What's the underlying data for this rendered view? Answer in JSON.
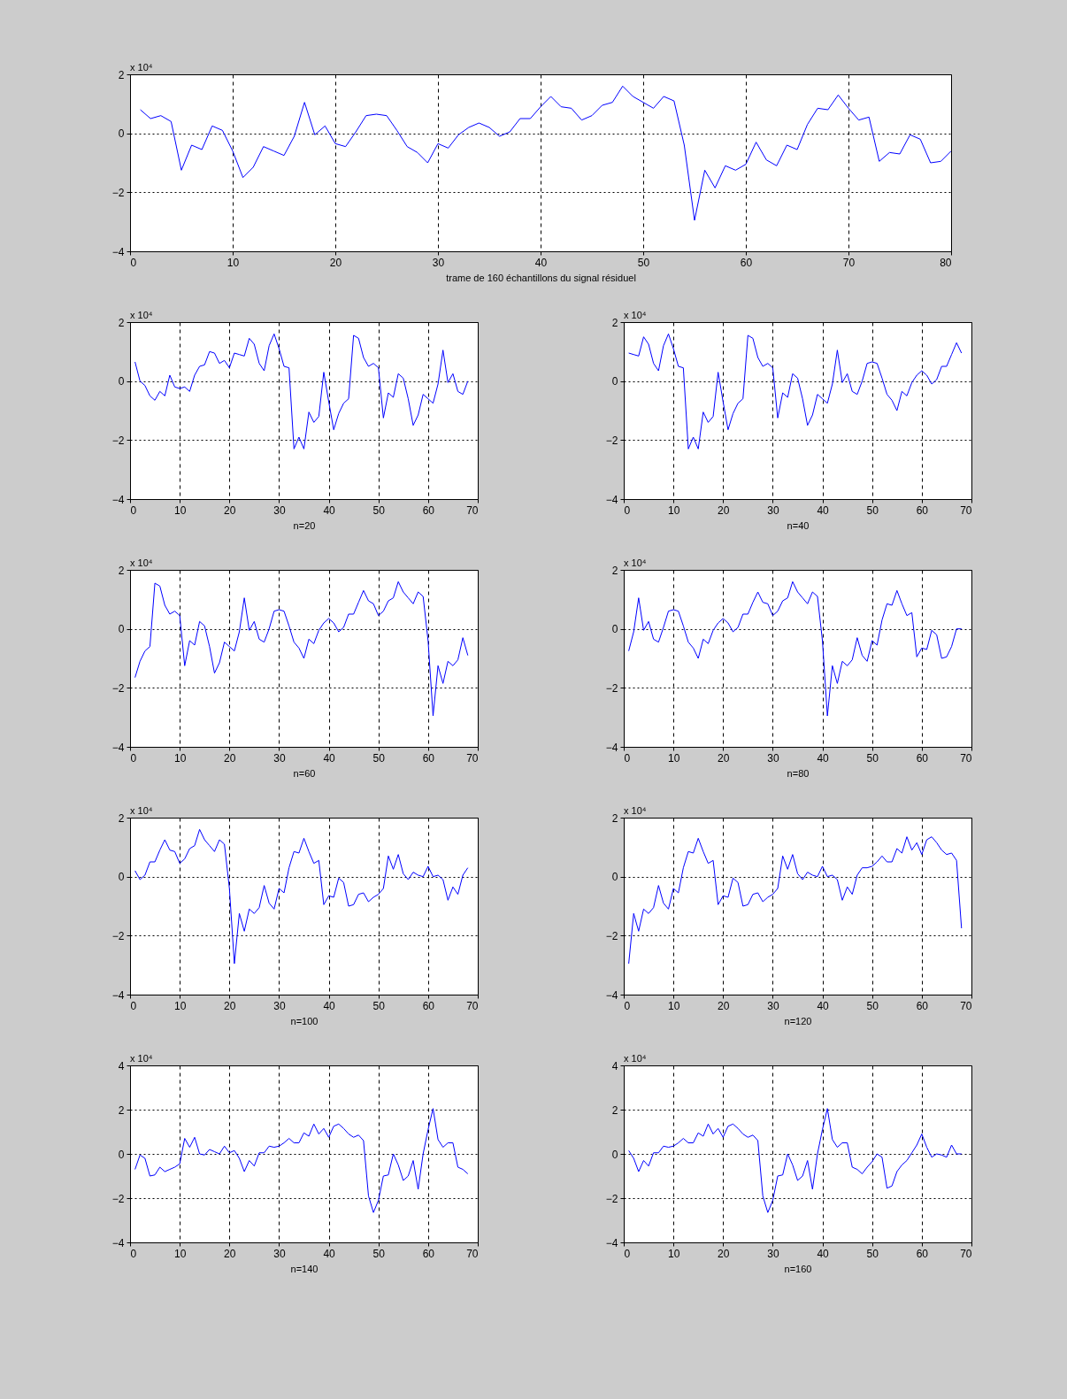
{
  "chart_data": [
    {
      "type": "line",
      "xlabel": "trame de 160 échantillons du signal résiduel",
      "annotations": [
        "x 10⁴"
      ],
      "xlim": [
        0,
        80
      ],
      "xticks": [
        0,
        10,
        20,
        30,
        40,
        50,
        60,
        70,
        80
      ],
      "ylim": [
        -4,
        2
      ],
      "yticks": [
        -4,
        -2,
        0,
        2
      ],
      "grid": true,
      "x": [
        1,
        2,
        3,
        4,
        5,
        6,
        7,
        8,
        9,
        10,
        11,
        12,
        13,
        14,
        15,
        16,
        17,
        18,
        19,
        20,
        21,
        22,
        23,
        24,
        25,
        26,
        27,
        28,
        29,
        30,
        31,
        32,
        33,
        34,
        35,
        36,
        37,
        38,
        39,
        40,
        41,
        42,
        43,
        44,
        45,
        46,
        47,
        48,
        49,
        50,
        51,
        52,
        53,
        54,
        55,
        56,
        57,
        58,
        59,
        60,
        61,
        62,
        63,
        64,
        65,
        66,
        67,
        68,
        69,
        70,
        71,
        72,
        73,
        74,
        75,
        76,
        77,
        78,
        79,
        80
      ],
      "series": [
        {
          "color": "#0000ff",
          "values": [
            0.8,
            0.5,
            0.6,
            0.4,
            -1.25,
            -0.4,
            -0.55,
            0.25,
            0.1,
            -0.6,
            -1.5,
            -1.15,
            -0.45,
            -0.6,
            -0.75,
            -0.1,
            1.05,
            -0.05,
            0.25,
            -0.35,
            -0.45,
            0.05,
            0.6,
            0.65,
            0.6,
            0.1,
            -0.45,
            -0.65,
            -1.0,
            -0.35,
            -0.5,
            -0.05,
            0.2,
            0.35,
            0.2,
            -0.1,
            0.05,
            0.5,
            0.5,
            0.9,
            1.25,
            0.9,
            0.85,
            0.45,
            0.6,
            0.95,
            1.05,
            1.6,
            1.25,
            1.05,
            0.85,
            1.25,
            1.1,
            -0.4,
            -2.95,
            -1.25,
            -1.85,
            -1.1,
            -1.25,
            -1.05,
            -0.3,
            -0.9,
            -1.1,
            -0.4,
            -0.55,
            0.3,
            0.85,
            0.8,
            1.3,
            0.85,
            0.45,
            0.55,
            -0.95,
            -0.65,
            -0.7,
            -0.05,
            -0.2,
            -1.0,
            -0.95,
            -0.6
          ]
        }
      ]
    },
    {
      "type": "line",
      "xlabel": "n=20",
      "annotations": [
        "x 10⁴"
      ],
      "xlim": [
        0,
        70
      ],
      "xticks": [
        0,
        10,
        20,
        30,
        40,
        50,
        60,
        70
      ],
      "ylim": [
        -4,
        2
      ],
      "yticks": [
        -4,
        -2,
        0,
        2
      ],
      "grid": true,
      "x": [
        1,
        2,
        3,
        4,
        5,
        6,
        7,
        8,
        9,
        10,
        11,
        12,
        13,
        14,
        15,
        16,
        17,
        18,
        19,
        20,
        21,
        22,
        23,
        24,
        25,
        26,
        27,
        28,
        29,
        30,
        31,
        32,
        33,
        34,
        35,
        36,
        37,
        38,
        39,
        40,
        41,
        42,
        43,
        44,
        45,
        46,
        47,
        48,
        49,
        50,
        51,
        52,
        53,
        54,
        55,
        56,
        57,
        58,
        59,
        60,
        61,
        62,
        63,
        64,
        65,
        66,
        67,
        68
      ],
      "series": [
        {
          "color": "#0000ff",
          "values": [
            0.65,
            0.0,
            -0.15,
            -0.5,
            -0.65,
            -0.35,
            -0.5,
            0.2,
            -0.2,
            -0.25,
            -0.2,
            -0.35,
            0.2,
            0.5,
            0.55,
            1.0,
            0.95,
            0.6,
            0.7,
            0.45,
            0.95,
            0.9,
            0.85,
            1.45,
            1.25,
            0.6,
            0.35,
            1.2,
            1.6,
            1.1,
            0.5,
            0.45,
            -2.3,
            -1.9,
            -2.3,
            -1.05,
            -1.4,
            -1.2,
            0.3,
            -0.7,
            -1.65,
            -1.1,
            -0.75,
            -0.6,
            1.55,
            1.45,
            0.8,
            0.5,
            0.6,
            0.45,
            -1.25,
            -0.4,
            -0.55,
            0.25,
            0.1,
            -0.6,
            -1.5,
            -1.15,
            -0.45,
            -0.6,
            -0.75,
            -0.1,
            1.05,
            -0.05,
            0.25,
            -0.35,
            -0.45,
            0.0
          ]
        }
      ]
    },
    {
      "type": "line",
      "xlabel": "n=40",
      "annotations": [
        "x 10⁴"
      ],
      "xlim": [
        0,
        70
      ],
      "xticks": [
        0,
        10,
        20,
        30,
        40,
        50,
        60,
        70
      ],
      "ylim": [
        -4,
        2
      ],
      "yticks": [
        -4,
        -2,
        0,
        2
      ],
      "grid": true,
      "x": [
        1,
        2,
        3,
        4,
        5,
        6,
        7,
        8,
        9,
        10,
        11,
        12,
        13,
        14,
        15,
        16,
        17,
        18,
        19,
        20,
        21,
        22,
        23,
        24,
        25,
        26,
        27,
        28,
        29,
        30,
        31,
        32,
        33,
        34,
        35,
        36,
        37,
        38,
        39,
        40,
        41,
        42,
        43,
        44,
        45,
        46,
        47,
        48,
        49,
        50,
        51,
        52,
        53,
        54,
        55,
        56,
        57,
        58,
        59,
        60,
        61,
        62,
        63,
        64,
        65,
        66,
        67,
        68
      ],
      "series": [
        {
          "color": "#0000ff",
          "values": [
            0.95,
            0.9,
            0.85,
            1.5,
            1.25,
            0.6,
            0.35,
            1.2,
            1.6,
            1.1,
            0.5,
            0.45,
            -2.3,
            -1.9,
            -2.3,
            -1.05,
            -1.4,
            -1.2,
            0.3,
            -0.7,
            -1.65,
            -1.1,
            -0.75,
            -0.6,
            1.55,
            1.45,
            0.8,
            0.5,
            0.6,
            0.45,
            -1.25,
            -0.4,
            -0.55,
            0.25,
            0.1,
            -0.6,
            -1.5,
            -1.15,
            -0.45,
            -0.6,
            -0.75,
            -0.1,
            1.05,
            -0.05,
            0.25,
            -0.35,
            -0.45,
            0.0,
            0.6,
            0.65,
            0.6,
            0.1,
            -0.45,
            -0.65,
            -1.0,
            -0.35,
            -0.5,
            -0.05,
            0.2,
            0.35,
            0.2,
            -0.1,
            0.05,
            0.5,
            0.5,
            0.9,
            1.3,
            0.95
          ]
        }
      ]
    },
    {
      "type": "line",
      "xlabel": "n=60",
      "annotations": [
        "x 10⁴"
      ],
      "xlim": [
        0,
        70
      ],
      "xticks": [
        0,
        10,
        20,
        30,
        40,
        50,
        60,
        70
      ],
      "ylim": [
        -4,
        2
      ],
      "yticks": [
        -4,
        -2,
        0,
        2
      ],
      "grid": true,
      "x": [
        1,
        2,
        3,
        4,
        5,
        6,
        7,
        8,
        9,
        10,
        11,
        12,
        13,
        14,
        15,
        16,
        17,
        18,
        19,
        20,
        21,
        22,
        23,
        24,
        25,
        26,
        27,
        28,
        29,
        30,
        31,
        32,
        33,
        34,
        35,
        36,
        37,
        38,
        39,
        40,
        41,
        42,
        43,
        44,
        45,
        46,
        47,
        48,
        49,
        50,
        51,
        52,
        53,
        54,
        55,
        56,
        57,
        58,
        59,
        60,
        61,
        62,
        63,
        64,
        65,
        66,
        67,
        68
      ],
      "series": [
        {
          "color": "#0000ff",
          "values": [
            -1.65,
            -1.1,
            -0.75,
            -0.6,
            1.55,
            1.45,
            0.8,
            0.5,
            0.6,
            0.45,
            -1.25,
            -0.4,
            -0.55,
            0.25,
            0.1,
            -0.6,
            -1.5,
            -1.15,
            -0.45,
            -0.6,
            -0.75,
            -0.1,
            1.05,
            -0.05,
            0.25,
            -0.35,
            -0.45,
            0.0,
            0.6,
            0.65,
            0.6,
            0.1,
            -0.45,
            -0.65,
            -1.0,
            -0.35,
            -0.5,
            -0.05,
            0.2,
            0.35,
            0.2,
            -0.1,
            0.05,
            0.5,
            0.5,
            0.9,
            1.3,
            0.95,
            0.85,
            0.45,
            0.6,
            0.95,
            1.05,
            1.6,
            1.25,
            1.05,
            0.85,
            1.25,
            1.1,
            -0.4,
            -2.95,
            -1.25,
            -1.85,
            -1.1,
            -1.25,
            -1.05,
            -0.3,
            -0.9
          ]
        }
      ]
    },
    {
      "type": "line",
      "xlabel": "n=80",
      "annotations": [
        "x 10⁴"
      ],
      "xlim": [
        0,
        70
      ],
      "xticks": [
        0,
        10,
        20,
        30,
        40,
        50,
        60,
        70
      ],
      "ylim": [
        -4,
        2
      ],
      "yticks": [
        -4,
        -2,
        0,
        2
      ],
      "grid": true,
      "x": [
        1,
        2,
        3,
        4,
        5,
        6,
        7,
        8,
        9,
        10,
        11,
        12,
        13,
        14,
        15,
        16,
        17,
        18,
        19,
        20,
        21,
        22,
        23,
        24,
        25,
        26,
        27,
        28,
        29,
        30,
        31,
        32,
        33,
        34,
        35,
        36,
        37,
        38,
        39,
        40,
        41,
        42,
        43,
        44,
        45,
        46,
        47,
        48,
        49,
        50,
        51,
        52,
        53,
        54,
        55,
        56,
        57,
        58,
        59,
        60,
        61,
        62,
        63,
        64,
        65,
        66,
        67,
        68
      ],
      "series": [
        {
          "color": "#0000ff",
          "values": [
            -0.75,
            -0.1,
            1.05,
            -0.05,
            0.25,
            -0.35,
            -0.45,
            0.05,
            0.6,
            0.65,
            0.6,
            0.1,
            -0.45,
            -0.65,
            -1.0,
            -0.35,
            -0.5,
            -0.05,
            0.2,
            0.35,
            0.2,
            -0.1,
            0.05,
            0.5,
            0.5,
            0.9,
            1.25,
            0.9,
            0.85,
            0.45,
            0.6,
            0.95,
            1.05,
            1.6,
            1.25,
            1.05,
            0.85,
            1.25,
            1.1,
            -0.4,
            -2.95,
            -1.25,
            -1.85,
            -1.1,
            -1.25,
            -1.05,
            -0.3,
            -0.9,
            -1.1,
            -0.4,
            -0.55,
            0.3,
            0.85,
            0.8,
            1.3,
            0.85,
            0.45,
            0.55,
            -0.95,
            -0.65,
            -0.7,
            -0.05,
            -0.2,
            -1.0,
            -0.95,
            -0.6,
            0.0,
            0.0
          ]
        }
      ]
    },
    {
      "type": "line",
      "xlabel": "n=100",
      "annotations": [
        "x 10⁴"
      ],
      "xlim": [
        0,
        70
      ],
      "xticks": [
        0,
        10,
        20,
        30,
        40,
        50,
        60,
        70
      ],
      "ylim": [
        -4,
        2
      ],
      "yticks": [
        -4,
        -2,
        0,
        2
      ],
      "grid": true,
      "x": [
        1,
        2,
        3,
        4,
        5,
        6,
        7,
        8,
        9,
        10,
        11,
        12,
        13,
        14,
        15,
        16,
        17,
        18,
        19,
        20,
        21,
        22,
        23,
        24,
        25,
        26,
        27,
        28,
        29,
        30,
        31,
        32,
        33,
        34,
        35,
        36,
        37,
        38,
        39,
        40,
        41,
        42,
        43,
        44,
        45,
        46,
        47,
        48,
        49,
        50,
        51,
        52,
        53,
        54,
        55,
        56,
        57,
        58,
        59,
        60,
        61,
        62,
        63,
        64,
        65,
        66,
        67,
        68
      ],
      "series": [
        {
          "color": "#0000ff",
          "values": [
            0.2,
            -0.1,
            0.05,
            0.5,
            0.5,
            0.9,
            1.25,
            0.9,
            0.85,
            0.45,
            0.6,
            0.95,
            1.05,
            1.6,
            1.25,
            1.05,
            0.85,
            1.25,
            1.1,
            -0.4,
            -2.95,
            -1.25,
            -1.85,
            -1.1,
            -1.25,
            -1.05,
            -0.3,
            -0.9,
            -1.1,
            -0.4,
            -0.55,
            0.3,
            0.85,
            0.8,
            1.3,
            0.85,
            0.45,
            0.55,
            -0.95,
            -0.65,
            -0.7,
            -0.05,
            -0.2,
            -1.0,
            -0.95,
            -0.6,
            -0.55,
            -0.85,
            -0.7,
            -0.6,
            -0.4,
            0.7,
            0.25,
            0.75,
            0.1,
            -0.1,
            0.15,
            0.05,
            0.0,
            0.35,
            0.0,
            0.05,
            -0.1,
            -0.8,
            -0.35,
            -0.6,
            0.05,
            0.3
          ]
        }
      ]
    },
    {
      "type": "line",
      "xlabel": "n=120",
      "annotations": [
        "x 10⁴"
      ],
      "xlim": [
        0,
        70
      ],
      "xticks": [
        0,
        10,
        20,
        30,
        40,
        50,
        60,
        70
      ],
      "ylim": [
        -4,
        2
      ],
      "yticks": [
        -4,
        -2,
        0,
        2
      ],
      "grid": true,
      "x": [
        1,
        2,
        3,
        4,
        5,
        6,
        7,
        8,
        9,
        10,
        11,
        12,
        13,
        14,
        15,
        16,
        17,
        18,
        19,
        20,
        21,
        22,
        23,
        24,
        25,
        26,
        27,
        28,
        29,
        30,
        31,
        32,
        33,
        34,
        35,
        36,
        37,
        38,
        39,
        40,
        41,
        42,
        43,
        44,
        45,
        46,
        47,
        48,
        49,
        50,
        51,
        52,
        53,
        54,
        55,
        56,
        57,
        58,
        59,
        60,
        61,
        62,
        63,
        64,
        65,
        66,
        67,
        68
      ],
      "series": [
        {
          "color": "#0000ff",
          "values": [
            -2.95,
            -1.25,
            -1.85,
            -1.1,
            -1.25,
            -1.05,
            -0.3,
            -0.9,
            -1.1,
            -0.4,
            -0.55,
            0.3,
            0.85,
            0.8,
            1.3,
            0.85,
            0.45,
            0.55,
            -0.95,
            -0.65,
            -0.7,
            -0.05,
            -0.2,
            -1.0,
            -0.95,
            -0.6,
            -0.55,
            -0.85,
            -0.7,
            -0.6,
            -0.4,
            0.7,
            0.25,
            0.75,
            0.1,
            -0.1,
            0.15,
            0.05,
            0.0,
            0.35,
            0.0,
            0.05,
            -0.1,
            -0.8,
            -0.35,
            -0.6,
            0.05,
            0.3,
            0.3,
            0.35,
            0.5,
            0.7,
            0.5,
            0.5,
            0.95,
            0.8,
            1.35,
            0.9,
            1.15,
            0.75,
            1.25,
            1.35,
            1.15,
            0.9,
            0.75,
            0.8,
            0.55,
            -1.75
          ]
        }
      ]
    },
    {
      "type": "line",
      "xlabel": "n=140",
      "annotations": [
        "x 10⁴"
      ],
      "xlim": [
        0,
        70
      ],
      "xticks": [
        0,
        10,
        20,
        30,
        40,
        50,
        60,
        70
      ],
      "ylim": [
        -4,
        4
      ],
      "yticks": [
        -4,
        -2,
        0,
        2,
        4
      ],
      "grid": true,
      "x": [
        1,
        2,
        3,
        4,
        5,
        6,
        7,
        8,
        9,
        10,
        11,
        12,
        13,
        14,
        15,
        16,
        17,
        18,
        19,
        20,
        21,
        22,
        23,
        24,
        25,
        26,
        27,
        28,
        29,
        30,
        31,
        32,
        33,
        34,
        35,
        36,
        37,
        38,
        39,
        40,
        41,
        42,
        43,
        44,
        45,
        46,
        47,
        48,
        49,
        50,
        51,
        52,
        53,
        54,
        55,
        56,
        57,
        58,
        59,
        60,
        61,
        62,
        63,
        64,
        65,
        66,
        67,
        68
      ],
      "series": [
        {
          "color": "#0000ff",
          "values": [
            -0.7,
            -0.05,
            -0.2,
            -1.0,
            -0.95,
            -0.6,
            -0.8,
            -0.7,
            -0.6,
            -0.45,
            0.7,
            0.3,
            0.75,
            0.0,
            -0.05,
            0.2,
            0.1,
            0.0,
            0.35,
            0.05,
            0.15,
            -0.2,
            -0.8,
            -0.3,
            -0.55,
            0.05,
            0.05,
            0.35,
            0.3,
            0.35,
            0.5,
            0.7,
            0.5,
            0.5,
            0.95,
            0.8,
            1.35,
            0.9,
            1.15,
            0.75,
            1.25,
            1.35,
            1.15,
            0.9,
            0.75,
            0.85,
            0.6,
            -1.9,
            -2.65,
            -2.1,
            -1.0,
            -0.95,
            0.0,
            -0.5,
            -1.2,
            -1.0,
            -0.3,
            -1.6,
            0.0,
            1.1,
            2.05,
            0.65,
            0.3,
            0.5,
            0.5,
            -0.6,
            -0.7,
            -0.9
          ]
        }
      ]
    },
    {
      "type": "line",
      "xlabel": "n=160",
      "annotations": [
        "x 10⁴"
      ],
      "xlim": [
        0,
        70
      ],
      "xticks": [
        0,
        10,
        20,
        30,
        40,
        50,
        60,
        70
      ],
      "ylim": [
        -4,
        4
      ],
      "yticks": [
        -4,
        -2,
        0,
        2,
        4
      ],
      "grid": true,
      "x": [
        1,
        2,
        3,
        4,
        5,
        6,
        7,
        8,
        9,
        10,
        11,
        12,
        13,
        14,
        15,
        16,
        17,
        18,
        19,
        20,
        21,
        22,
        23,
        24,
        25,
        26,
        27,
        28,
        29,
        30,
        31,
        32,
        33,
        34,
        35,
        36,
        37,
        38,
        39,
        40,
        41,
        42,
        43,
        44,
        45,
        46,
        47,
        48,
        49,
        50,
        51,
        52,
        53,
        54,
        55,
        56,
        57,
        58,
        59,
        60,
        61,
        62,
        63,
        64,
        65,
        66,
        67,
        68
      ],
      "series": [
        {
          "color": "#0000ff",
          "values": [
            0.15,
            -0.2,
            -0.8,
            -0.3,
            -0.55,
            0.05,
            0.05,
            0.35,
            0.3,
            0.35,
            0.5,
            0.7,
            0.5,
            0.5,
            0.95,
            0.8,
            1.35,
            0.9,
            1.15,
            0.75,
            1.25,
            1.35,
            1.15,
            0.9,
            0.75,
            0.85,
            0.6,
            -1.9,
            -2.65,
            -2.1,
            -1.0,
            -0.95,
            0.0,
            -0.5,
            -1.2,
            -1.0,
            -0.3,
            -1.6,
            0.0,
            1.1,
            2.05,
            0.65,
            0.3,
            0.5,
            0.5,
            -0.6,
            -0.7,
            -0.9,
            -0.6,
            -0.35,
            0.0,
            -0.15,
            -1.55,
            -1.45,
            -0.8,
            -0.5,
            -0.3,
            0.05,
            0.4,
            0.9,
            0.3,
            -0.15,
            0.0,
            -0.05,
            -0.15,
            0.4,
            0.0,
            0.0
          ]
        }
      ]
    }
  ]
}
